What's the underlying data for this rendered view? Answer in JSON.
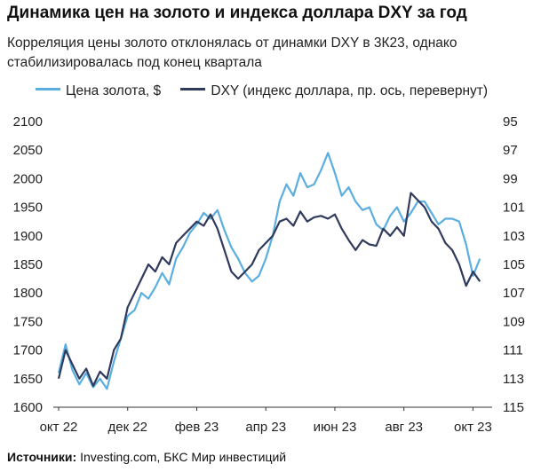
{
  "header": {
    "title": "Динамика цен на золото и индекса доллара DXY за год",
    "subtitle": "Корреляция цены золото отклонялась от динамки DXY в 3К23, однако стабилизировалась под конец квартала"
  },
  "legend": {
    "gold": "Цена золота, $",
    "dxy": "DXY (индекс доллара, пр. ось, перевернут)"
  },
  "footer": {
    "source_label": "Источники:",
    "source_text": " Investing.com, БКС Мир инвестиций"
  },
  "colors": {
    "gold": "#5aaee0",
    "dxy": "#2f3a5c",
    "axis": "#333333"
  },
  "chart_data": {
    "type": "line",
    "x_ticks": [
      "окт 22",
      "дек 22",
      "фев 23",
      "апр 23",
      "июн 23",
      "авг 23",
      "окт 23"
    ],
    "x_range": [
      0,
      12.4
    ],
    "y_left": {
      "label": "Цена золота, $",
      "range": [
        1600,
        2100
      ],
      "ticks": [
        1600,
        1650,
        1700,
        1750,
        1800,
        1850,
        1900,
        1950,
        2000,
        2050,
        2100
      ]
    },
    "y_right": {
      "label": "DXY, перевернут",
      "range": [
        95,
        115
      ],
      "inverted": true,
      "ticks": [
        95,
        97,
        99,
        101,
        103,
        105,
        107,
        109,
        111,
        113,
        115
      ]
    },
    "grid": false,
    "legend_position": "top",
    "series": [
      {
        "name": "Цена золота, $",
        "axis": "left",
        "x": [
          0,
          0.2,
          0.4,
          0.6,
          0.8,
          1.0,
          1.2,
          1.4,
          1.6,
          1.8,
          2.0,
          2.2,
          2.4,
          2.6,
          2.8,
          3.0,
          3.2,
          3.4,
          3.6,
          3.8,
          4.0,
          4.2,
          4.4,
          4.6,
          4.8,
          5.0,
          5.2,
          5.4,
          5.6,
          5.8,
          6.0,
          6.2,
          6.4,
          6.6,
          6.8,
          7.0,
          7.2,
          7.4,
          7.6,
          7.8,
          8.0,
          8.2,
          8.4,
          8.6,
          8.8,
          9.0,
          9.2,
          9.4,
          9.6,
          9.8,
          10.0,
          10.2,
          10.4,
          10.6,
          10.8,
          11.0,
          11.2,
          11.4,
          11.6,
          11.8,
          12.0,
          12.2
        ],
        "values": [
          1660,
          1710,
          1665,
          1640,
          1660,
          1635,
          1650,
          1632,
          1680,
          1720,
          1760,
          1770,
          1800,
          1790,
          1810,
          1835,
          1815,
          1860,
          1880,
          1905,
          1920,
          1940,
          1930,
          1945,
          1910,
          1880,
          1860,
          1835,
          1820,
          1830,
          1860,
          1900,
          1960,
          1990,
          1970,
          2010,
          1985,
          1990,
          2015,
          2045,
          2010,
          1970,
          1985,
          1960,
          1945,
          1950,
          1920,
          1910,
          1935,
          1950,
          1925,
          1940,
          1960,
          1960,
          1940,
          1920,
          1930,
          1930,
          1925,
          1885,
          1830,
          1860
        ]
      },
      {
        "name": "DXY (индекс доллара, пр. ось, перевернут)",
        "axis": "right",
        "x": [
          0,
          0.2,
          0.4,
          0.6,
          0.8,
          1.0,
          1.2,
          1.4,
          1.6,
          1.8,
          2.0,
          2.2,
          2.4,
          2.6,
          2.8,
          3.0,
          3.2,
          3.4,
          3.6,
          3.8,
          4.0,
          4.2,
          4.4,
          4.6,
          4.8,
          5.0,
          5.2,
          5.4,
          5.6,
          5.8,
          6.0,
          6.2,
          6.4,
          6.6,
          6.8,
          7.0,
          7.2,
          7.4,
          7.6,
          7.8,
          8.0,
          8.2,
          8.4,
          8.6,
          8.8,
          9.0,
          9.2,
          9.4,
          9.6,
          9.8,
          10.0,
          10.2,
          10.4,
          10.6,
          10.8,
          11.0,
          11.2,
          11.4,
          11.6,
          11.8,
          12.0,
          12.2
        ],
        "values": [
          113.0,
          111.0,
          112.0,
          113.0,
          112.3,
          113.5,
          112.5,
          113.0,
          111.0,
          110.2,
          108.0,
          107.0,
          106.0,
          105.0,
          105.5,
          104.5,
          105.0,
          103.5,
          103.0,
          102.5,
          102.0,
          102.3,
          101.5,
          102.5,
          104.0,
          105.5,
          106.0,
          105.5,
          105.0,
          104.0,
          103.5,
          103.0,
          102.0,
          101.8,
          102.3,
          101.3,
          102.0,
          101.7,
          101.6,
          101.8,
          101.5,
          102.5,
          103.3,
          104.0,
          103.3,
          103.6,
          103.7,
          102.5,
          103.0,
          102.4,
          103.0,
          100.0,
          100.5,
          101.0,
          102.0,
          102.5,
          103.5,
          104.0,
          105.0,
          106.5,
          105.5,
          106.2
        ]
      }
    ]
  }
}
